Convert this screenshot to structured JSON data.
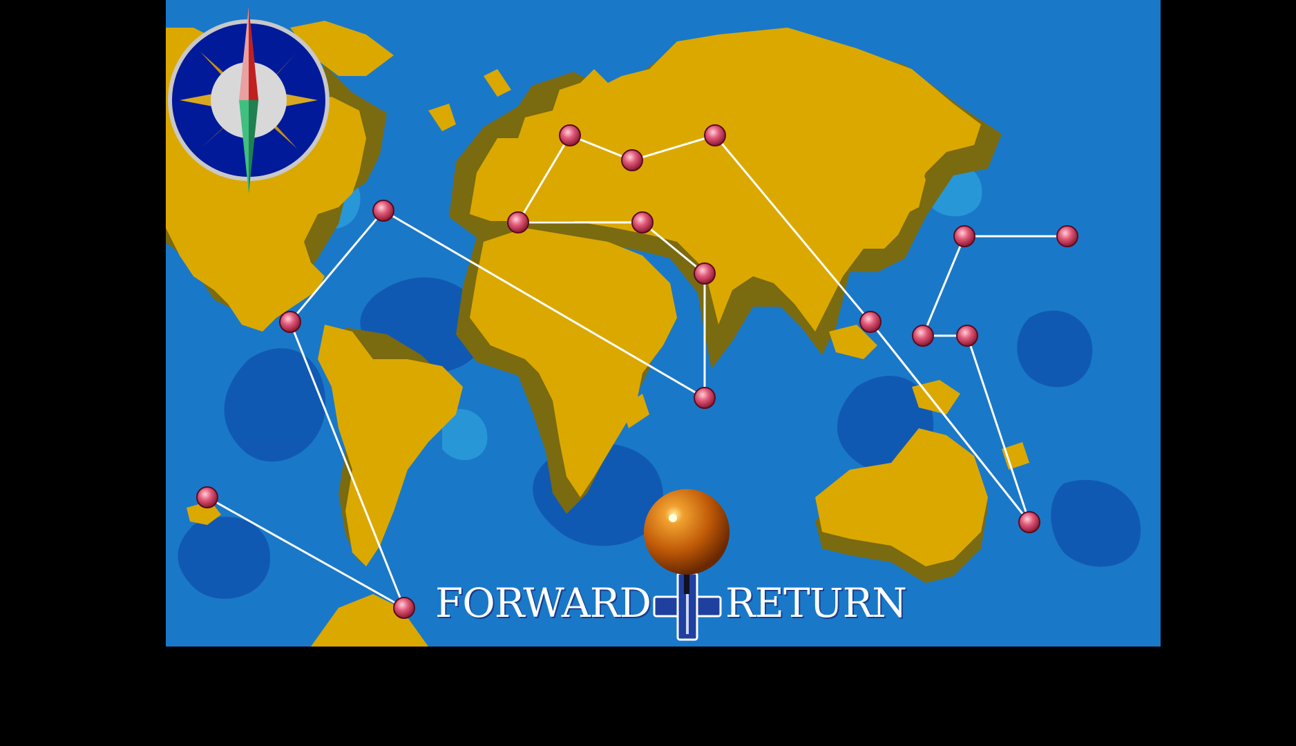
{
  "controls": {
    "forward_label": "FORWARD",
    "return_label": "RETURN"
  },
  "colors": {
    "ocean": "#1a78c8",
    "ocean_deep": "#0f55b0",
    "ocean_light": "#2a9ad8",
    "land": "#dba800",
    "land_shadow": "#7a6a10",
    "route_line": "#ffffff",
    "location_marker": "#d84060",
    "cursor_ball": "#c86010",
    "compass_ring": "#001a9a"
  },
  "icons": {
    "compass": "compass-rose-icon",
    "cursor": "orange-ball-pin-icon",
    "dpad": "dpad-cross-icon",
    "location": "location-marker-icon"
  }
}
